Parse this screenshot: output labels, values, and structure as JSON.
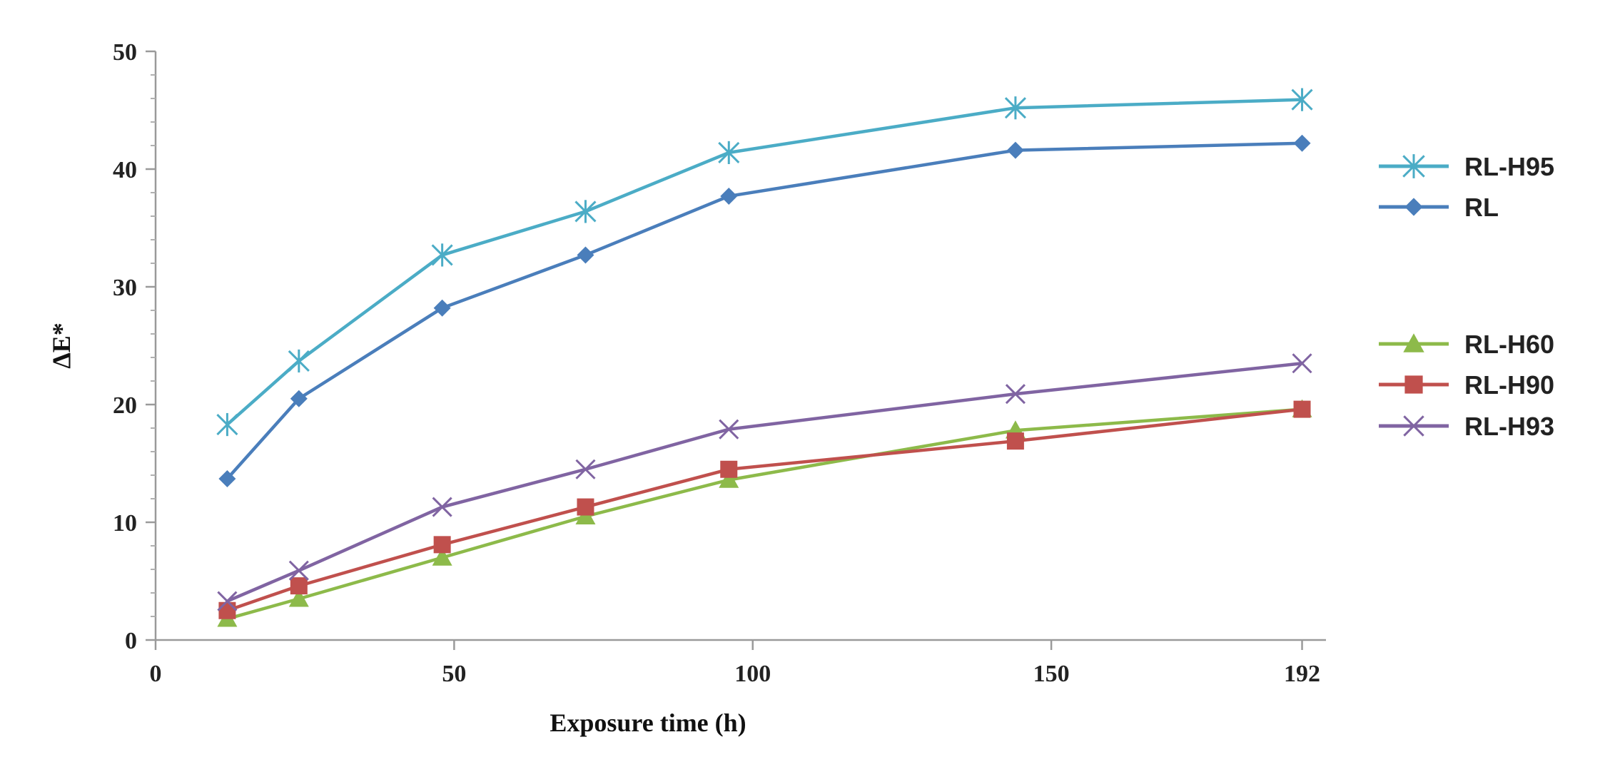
{
  "chart_data": {
    "type": "line",
    "title": "",
    "xlabel": "Exposure time (h)",
    "ylabel": "ΔE*",
    "xlim": [
      0,
      196
    ],
    "ylim": [
      0,
      50
    ],
    "xticks": [
      0,
      50,
      100,
      150,
      192
    ],
    "yticks": [
      0,
      10,
      20,
      30,
      40,
      50
    ],
    "x": [
      12,
      24,
      48,
      72,
      96,
      144,
      192
    ],
    "grid": false,
    "legend_position": "right",
    "series": [
      {
        "name": "RL-H95",
        "color": "#4bacc6",
        "marker": "asterisk",
        "values": [
          18.3,
          23.7,
          32.7,
          36.4,
          41.4,
          45.2,
          45.9
        ]
      },
      {
        "name": "RL",
        "color": "#4a7ebb",
        "marker": "diamond",
        "values": [
          13.7,
          20.5,
          28.2,
          32.7,
          37.7,
          41.6,
          42.2
        ]
      },
      {
        "name": "RL-H60",
        "color": "#8dba4a",
        "marker": "triangle",
        "values": [
          1.8,
          3.5,
          7.0,
          10.5,
          13.6,
          17.8,
          19.6
        ]
      },
      {
        "name": "RL-H90",
        "color": "#c0504d",
        "marker": "square",
        "values": [
          2.5,
          4.6,
          8.1,
          11.3,
          14.5,
          16.9,
          19.6
        ]
      },
      {
        "name": "RL-H93",
        "color": "#8064a2",
        "marker": "x",
        "values": [
          3.3,
          5.9,
          11.3,
          14.5,
          17.9,
          20.9,
          23.5
        ]
      }
    ]
  }
}
